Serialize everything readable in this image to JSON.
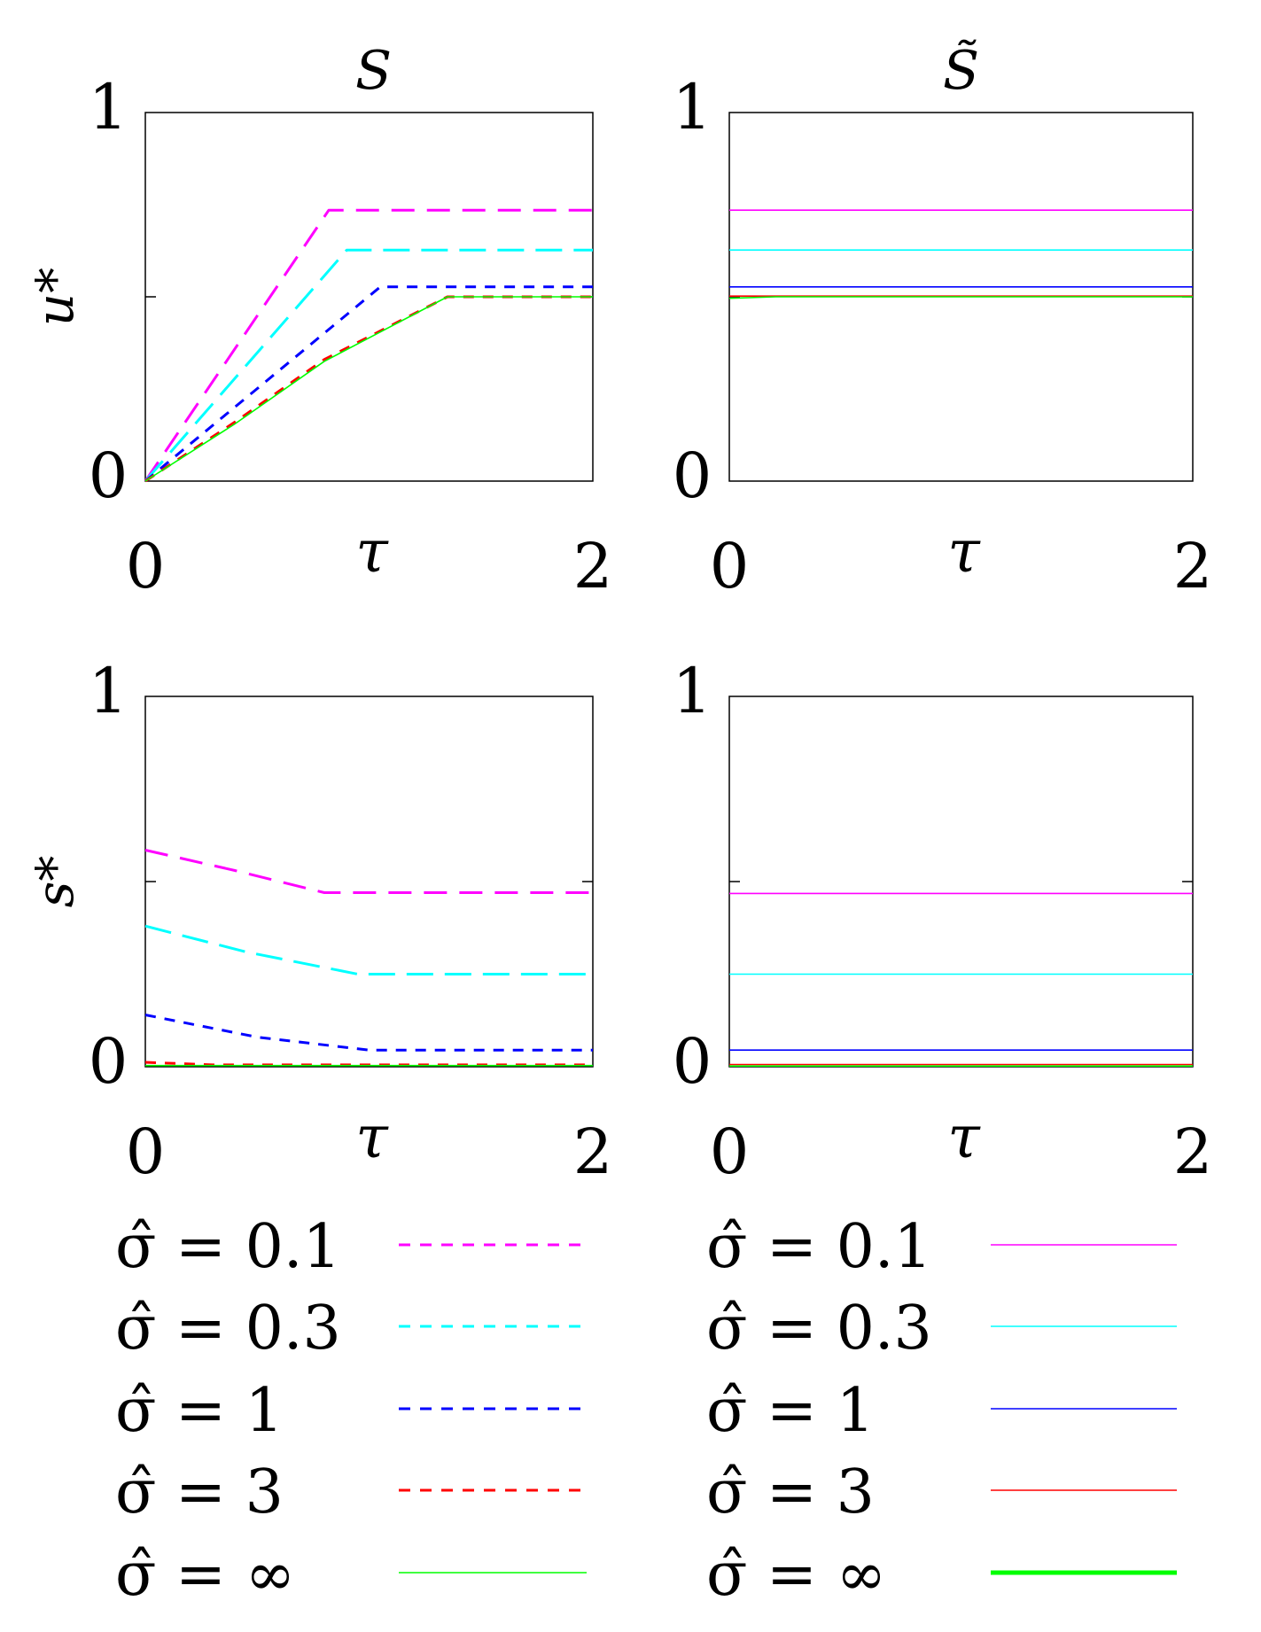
{
  "chart_data": [
    {
      "type": "line",
      "title": "S",
      "ylabel": "u*",
      "xlabel": "τ",
      "xlim": [
        0,
        2
      ],
      "ylim": [
        0,
        1
      ],
      "xticks": [
        "0",
        "2"
      ],
      "yticks": [
        "0",
        "1"
      ],
      "series": [
        {
          "name": "σ̂ = 0.1",
          "color": "#ff00ff",
          "style": "dashed",
          "x": [
            0,
            0.82,
            2
          ],
          "y": [
            0,
            0.735,
            0.735
          ]
        },
        {
          "name": "σ̂ = 0.3",
          "color": "#00ffff",
          "style": "dashed",
          "x": [
            0,
            0.9,
            2
          ],
          "y": [
            0,
            0.627,
            0.627
          ]
        },
        {
          "name": "σ̂ = 1",
          "color": "#0000ff",
          "style": "dashed",
          "x": [
            0,
            1.05,
            2
          ],
          "y": [
            0,
            0.527,
            0.527
          ]
        },
        {
          "name": "σ̂ = 3",
          "color": "#ff0000",
          "style": "dashed",
          "x": [
            0,
            0.4,
            0.8,
            1.35,
            2
          ],
          "y": [
            0,
            0.16,
            0.33,
            0.5,
            0.5
          ]
        },
        {
          "name": "σ̂ = ∞",
          "color": "#00ff00",
          "style": "solid",
          "x": [
            0,
            0.4,
            0.8,
            1.35,
            2
          ],
          "y": [
            0,
            0.155,
            0.325,
            0.5,
            0.5
          ]
        }
      ]
    },
    {
      "type": "line",
      "title": "S̃",
      "ylabel": "",
      "xlabel": "τ",
      "xlim": [
        0,
        2
      ],
      "ylim": [
        0,
        1
      ],
      "xticks": [
        "0",
        "2"
      ],
      "yticks": [
        "0",
        "1"
      ],
      "series": [
        {
          "name": "σ̂ = 0.1",
          "color": "#ff00ff",
          "style": "solid",
          "x": [
            0,
            2
          ],
          "y": [
            0.735,
            0.735
          ]
        },
        {
          "name": "σ̂ = 0.3",
          "color": "#00ffff",
          "style": "solid",
          "x": [
            0,
            2
          ],
          "y": [
            0.627,
            0.627
          ]
        },
        {
          "name": "σ̂ = 1",
          "color": "#0000ff",
          "style": "solid",
          "x": [
            0,
            2
          ],
          "y": [
            0.527,
            0.527
          ]
        },
        {
          "name": "σ̂ = 3",
          "color": "#ff0000",
          "style": "solid",
          "x": [
            0,
            2
          ],
          "y": [
            0.502,
            0.502
          ]
        },
        {
          "name": "σ̂ = ∞",
          "color": "#00ff00",
          "style": "solid",
          "x": [
            0,
            0.2,
            2
          ],
          "y": [
            0.496,
            0.5,
            0.5
          ]
        }
      ]
    },
    {
      "type": "line",
      "title": "",
      "ylabel": "s*",
      "xlabel": "τ",
      "xlim": [
        0,
        2
      ],
      "ylim": [
        0,
        1
      ],
      "xticks": [
        "0",
        "2"
      ],
      "yticks": [
        "0",
        "1"
      ],
      "series": [
        {
          "name": "σ̂ = 0.1",
          "color": "#ff00ff",
          "style": "dashed",
          "x": [
            0,
            0.4,
            0.8,
            2
          ],
          "y": [
            0.585,
            0.53,
            0.47,
            0.47
          ]
        },
        {
          "name": "σ̂ = 0.3",
          "color": "#00ffff",
          "style": "dashed",
          "x": [
            0,
            0.45,
            0.95,
            2
          ],
          "y": [
            0.38,
            0.31,
            0.25,
            0.25
          ]
        },
        {
          "name": "σ̂ = 1",
          "color": "#0000ff",
          "style": "dashed",
          "x": [
            0,
            0.5,
            1.0,
            2
          ],
          "y": [
            0.14,
            0.08,
            0.045,
            0.045
          ]
        },
        {
          "name": "σ̂ = 3",
          "color": "#ff0000",
          "style": "dashed",
          "x": [
            0,
            0.3,
            2
          ],
          "y": [
            0.012,
            0.005,
            0.005
          ]
        },
        {
          "name": "σ̂ = ∞",
          "color": "#00ff00",
          "style": "solid",
          "x": [
            0,
            2
          ],
          "y": [
            0.003,
            0.003
          ]
        }
      ]
    },
    {
      "type": "line",
      "title": "",
      "ylabel": "",
      "xlabel": "τ",
      "xlim": [
        0,
        2
      ],
      "ylim": [
        0,
        1
      ],
      "xticks": [
        "0",
        "2"
      ],
      "yticks": [
        "0",
        "1"
      ],
      "series": [
        {
          "name": "σ̂ = 0.1",
          "color": "#ff00ff",
          "style": "solid",
          "x": [
            0,
            2
          ],
          "y": [
            0.468,
            0.468
          ]
        },
        {
          "name": "σ̂ = 0.3",
          "color": "#00ffff",
          "style": "solid",
          "x": [
            0,
            2
          ],
          "y": [
            0.25,
            0.25
          ]
        },
        {
          "name": "σ̂ = 1",
          "color": "#0000ff",
          "style": "solid",
          "x": [
            0,
            2
          ],
          "y": [
            0.045,
            0.045
          ]
        },
        {
          "name": "σ̂ = 3",
          "color": "#ff0000",
          "style": "solid",
          "x": [
            0,
            2
          ],
          "y": [
            0.006,
            0.006
          ]
        },
        {
          "name": "σ̂ = ∞",
          "color": "#00ff00",
          "style": "solid",
          "x": [
            0,
            2
          ],
          "y": [
            0.002,
            0.002
          ]
        }
      ]
    }
  ],
  "legends": [
    {
      "entries": [
        {
          "label": "σ̂ = 0.1",
          "color": "#ff00ff",
          "style": "dashed"
        },
        {
          "label": "σ̂ = 0.3",
          "color": "#00ffff",
          "style": "dashed"
        },
        {
          "label": "σ̂ = 1",
          "color": "#0000ff",
          "style": "dashed"
        },
        {
          "label": "σ̂ = 3",
          "color": "#ff0000",
          "style": "dashed"
        },
        {
          "label": "σ̂ = ∞",
          "color": "#00ff00",
          "style": "solid"
        }
      ]
    },
    {
      "entries": [
        {
          "label": "σ̂ = 0.1",
          "color": "#ff00ff",
          "style": "solid"
        },
        {
          "label": "σ̂ = 0.3",
          "color": "#00ffff",
          "style": "solid"
        },
        {
          "label": "σ̂ = 1",
          "color": "#0000ff",
          "style": "solid"
        },
        {
          "label": "σ̂ = 3",
          "color": "#ff0000",
          "style": "solid"
        },
        {
          "label": "σ̂ = ∞",
          "color": "#00ff00",
          "style": "solid-thick"
        }
      ]
    }
  ]
}
